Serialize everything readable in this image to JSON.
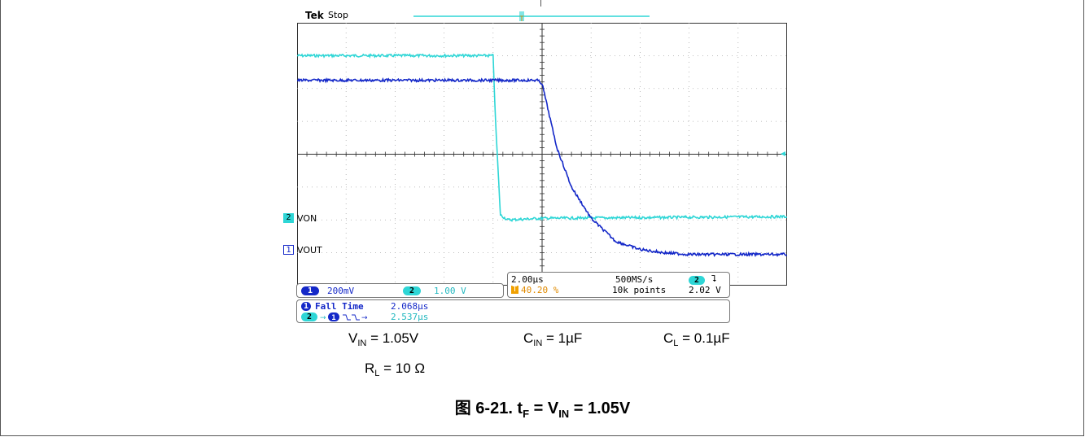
{
  "scope": {
    "brand": "Tek",
    "status": "Stop"
  },
  "channels": [
    {
      "id": "1",
      "name": "VOUT",
      "scale": "200mV",
      "color": "#1428c8"
    },
    {
      "id": "2",
      "name": "VON",
      "scale": "1.00 V",
      "color": "#2ed6d6"
    }
  ],
  "timebase": {
    "time_per_div": "2.00µs",
    "sample_rate": "500MS/s",
    "trigger_pos": "40.20 %",
    "record_length": "10k points",
    "trigger_channel": "2",
    "trigger_slope": "⮧",
    "trigger_level": "2.02 V"
  },
  "measurements": [
    {
      "label": "Fall Time",
      "value": "2.068µs"
    },
    {
      "label": "2 → 1 delay",
      "value": "2.537µs"
    }
  ],
  "conditions": {
    "vin": {
      "symbol": "V",
      "sub": "IN",
      "value": " = 1.05V"
    },
    "cin": {
      "symbol": "C",
      "sub": "IN",
      "value": " = 1µF"
    },
    "cl": {
      "symbol": "C",
      "sub": "L",
      "value": " = 0.1µF"
    },
    "rl": {
      "symbol": "R",
      "sub": "L",
      "value": " = 10 Ω"
    }
  },
  "figure_caption": {
    "prefix": "图 6-21. t",
    "sub1": "F",
    "mid": " = V",
    "sub2": "IN",
    "suffix": " = 1.05V"
  },
  "chart_data": {
    "type": "line",
    "title": "",
    "xlabel": "",
    "ylabel": "",
    "grid": true,
    "x_divisions": 10,
    "y_divisions": 8,
    "xlim": [
      0,
      10
    ],
    "ylim": [
      0,
      8
    ],
    "series": [
      {
        "name": "VON",
        "color": "#2ed6d6",
        "x": [
          0,
          4.0,
          4.05,
          4.15,
          4.3,
          5.0,
          10
        ],
        "y": [
          7.0,
          7.0,
          5.0,
          2.15,
          2.0,
          2.05,
          2.1
        ]
      },
      {
        "name": "VOUT",
        "color": "#1428c8",
        "x": [
          0,
          4.9,
          5.0,
          5.1,
          5.3,
          5.6,
          6.0,
          6.5,
          7.0,
          7.5,
          8.0,
          9.0,
          10
        ],
        "y": [
          6.25,
          6.25,
          6.15,
          5.5,
          4.2,
          3.0,
          2.05,
          1.35,
          1.1,
          1.0,
          0.95,
          0.95,
          0.95
        ]
      }
    ]
  }
}
